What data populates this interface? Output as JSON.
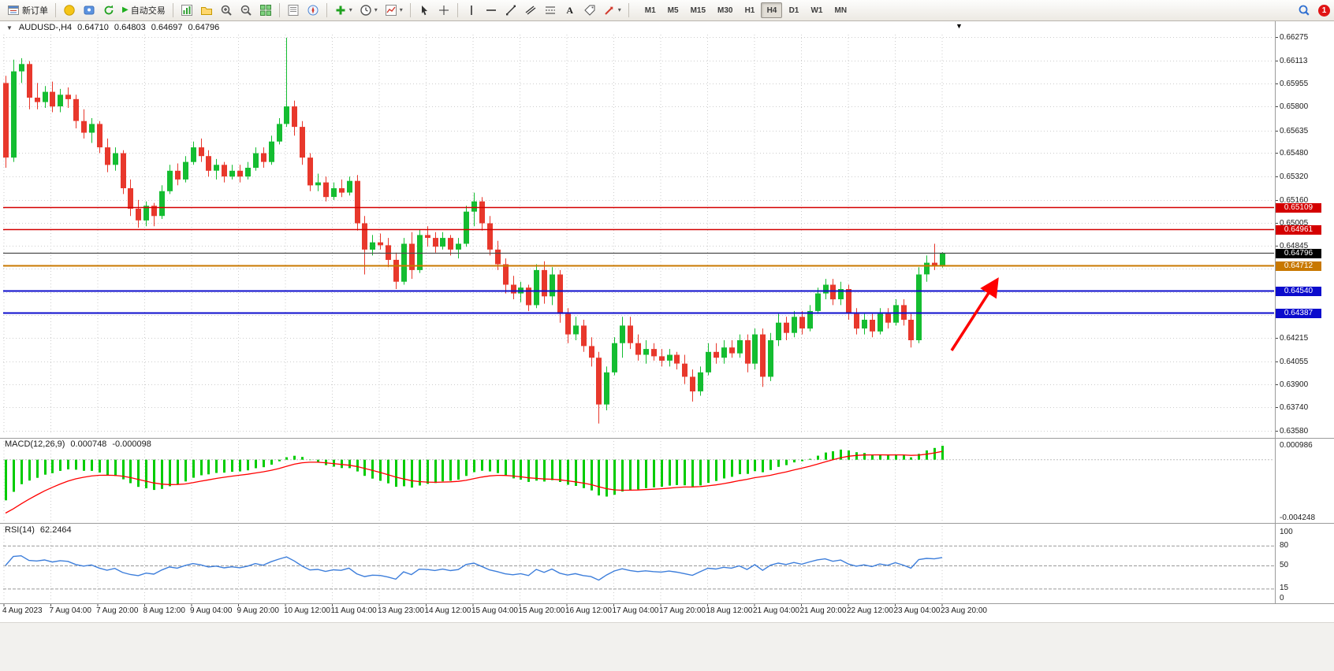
{
  "colors": {
    "up": "#14bd31",
    "down": "#e8382c",
    "grid": "#cdcdcd",
    "resistance": "#d40000",
    "mid_level": "#c87800",
    "support": "#0c0ccd",
    "bid": "#4a4a4a",
    "box_black": "#000000",
    "macd_hist": "#00cc00",
    "macd_signal": "#ff0000",
    "rsi": "#3d7edb",
    "rsi_level": "#999999",
    "arrow": "#fe0000"
  },
  "ui": {
    "toolbar": {
      "new_order_label": "新订单",
      "autotrading_label": "自动交易",
      "timeframes": [
        "M1",
        "M5",
        "M15",
        "M30",
        "H1",
        "H4",
        "D1",
        "W1",
        "MN"
      ],
      "active_timeframe": "H4",
      "notification_count": "1",
      "icons": {
        "dropdown": "▾",
        "play": "▶",
        "text_tool": "A"
      }
    },
    "chart_header": {
      "collapse_icon": "▼",
      "symbol_period": "AUDUSD-,H4",
      "open": "0.64710",
      "high": "0.64803",
      "low": "0.64697",
      "close": "0.64796",
      "shift_marker": "▼"
    },
    "macd": {
      "name": "MACD(12,26,9)",
      "value_main": "0.000748",
      "value_signal": "-0.000098",
      "scale_top": "0.000986",
      "scale_bottom": "-0.004248"
    },
    "rsi": {
      "name": "RSI(14)",
      "value": "62.2464",
      "scale": [
        {
          "label": "100",
          "value": 100
        },
        {
          "label": "80",
          "value": 80
        },
        {
          "label": "50",
          "value": 50
        },
        {
          "label": "15",
          "value": 15
        },
        {
          "label": "0",
          "value": 0
        }
      ]
    }
  },
  "chart_data": {
    "type": "candlestick",
    "symbol": "AUDUSD-",
    "timeframe": "H4",
    "current_ohlc": {
      "open": 0.6471,
      "high": 0.64803,
      "low": 0.64697,
      "close": 0.64796
    },
    "price_axis": {
      "min": 0.6358,
      "max": 0.66275,
      "tick_labels": [
        "0.66275",
        "0.66113",
        "0.65955",
        "0.65800",
        "0.65635",
        "0.65480",
        "0.65320",
        "0.65160",
        "0.65005",
        "0.64845",
        "0.64690",
        "0.64530",
        "0.64370",
        "0.64215",
        "0.64055",
        "0.63900",
        "0.63740",
        "0.63580"
      ]
    },
    "time_axis": [
      "4 Aug 2023",
      "7 Aug 04:00",
      "7 Aug 20:00",
      "8 Aug 12:00",
      "9 Aug 04:00",
      "9 Aug 20:00",
      "10 Aug 12:00",
      "11 Aug 04:00",
      "13 Aug 23:00",
      "14 Aug 12:00",
      "15 Aug 04:00",
      "15 Aug 20:00",
      "16 Aug 12:00",
      "17 Aug 04:00",
      "17 Aug 20:00",
      "18 Aug 12:00",
      "21 Aug 04:00",
      "21 Aug 20:00",
      "22 Aug 12:00",
      "23 Aug 04:00",
      "23 Aug 20:00"
    ],
    "horizontal_levels": [
      {
        "price": 0.65109,
        "label": "0.65109",
        "kind": "resistance"
      },
      {
        "price": 0.64961,
        "label": "0.64961",
        "kind": "resistance"
      },
      {
        "price": 0.64712,
        "label": "0.64712",
        "kind": "mid_level"
      },
      {
        "price": 0.6454,
        "label": "0.64540",
        "kind": "support"
      },
      {
        "price": 0.64387,
        "label": "0.64387",
        "kind": "support"
      }
    ],
    "bid": {
      "price": 0.64796,
      "label": "0.64796"
    },
    "indicators": [
      {
        "name": "MACD",
        "params": [
          12,
          26,
          9
        ],
        "current": [
          0.000748,
          -9.8e-05
        ],
        "scale": [
          0.000986,
          -0.004248
        ]
      },
      {
        "name": "RSI",
        "params": [
          14
        ],
        "current": 62.2464,
        "levels": [
          80,
          50,
          15
        ],
        "range": [
          0,
          100
        ]
      }
    ],
    "annotations": [
      {
        "type": "arrow",
        "color": "#fe0000",
        "direction": "up-right",
        "note": "bullish momentum arrow near latest candles"
      }
    ],
    "candles_ohlc": [
      [
        0.6596,
        0.6601,
        0.6538,
        0.6545
      ],
      [
        0.6545,
        0.6612,
        0.6542,
        0.6604
      ],
      [
        0.6604,
        0.6613,
        0.6596,
        0.6609
      ],
      [
        0.6609,
        0.6611,
        0.6578,
        0.6586
      ],
      [
        0.6586,
        0.6596,
        0.6578,
        0.6583
      ],
      [
        0.6583,
        0.6594,
        0.6579,
        0.659
      ],
      [
        0.659,
        0.6597,
        0.6576,
        0.658
      ],
      [
        0.658,
        0.6592,
        0.6576,
        0.6588
      ],
      [
        0.6588,
        0.6593,
        0.6579,
        0.6585
      ],
      [
        0.6585,
        0.6588,
        0.6565,
        0.657
      ],
      [
        0.657,
        0.6578,
        0.6558,
        0.6562
      ],
      [
        0.6562,
        0.6572,
        0.6555,
        0.6568
      ],
      [
        0.6568,
        0.657,
        0.6548,
        0.6552
      ],
      [
        0.6552,
        0.6558,
        0.6535,
        0.654
      ],
      [
        0.654,
        0.6552,
        0.6536,
        0.6548
      ],
      [
        0.6548,
        0.655,
        0.652,
        0.6524
      ],
      [
        0.6524,
        0.653,
        0.6505,
        0.651
      ],
      [
        0.651,
        0.6516,
        0.6497,
        0.6502
      ],
      [
        0.6502,
        0.6515,
        0.6498,
        0.6512
      ],
      [
        0.6512,
        0.6514,
        0.6498,
        0.6505
      ],
      [
        0.6505,
        0.6526,
        0.6503,
        0.6522
      ],
      [
        0.6522,
        0.654,
        0.652,
        0.6536
      ],
      [
        0.6536,
        0.6541,
        0.6526,
        0.653
      ],
      [
        0.653,
        0.6546,
        0.6528,
        0.6542
      ],
      [
        0.6542,
        0.6556,
        0.654,
        0.6552
      ],
      [
        0.6552,
        0.6558,
        0.6542,
        0.6546
      ],
      [
        0.6546,
        0.655,
        0.6532,
        0.6536
      ],
      [
        0.6536,
        0.6544,
        0.653,
        0.654
      ],
      [
        0.654,
        0.6542,
        0.6528,
        0.6532
      ],
      [
        0.6532,
        0.654,
        0.653,
        0.6536
      ],
      [
        0.6536,
        0.654,
        0.6528,
        0.6532
      ],
      [
        0.6532,
        0.6542,
        0.653,
        0.6538
      ],
      [
        0.6538,
        0.6552,
        0.6536,
        0.6548
      ],
      [
        0.6548,
        0.6552,
        0.6538,
        0.6542
      ],
      [
        0.6542,
        0.656,
        0.654,
        0.6556
      ],
      [
        0.6556,
        0.6572,
        0.6554,
        0.6568
      ],
      [
        0.6568,
        0.6627,
        0.6566,
        0.658
      ],
      [
        0.658,
        0.6584,
        0.656,
        0.6566
      ],
      [
        0.6566,
        0.657,
        0.654,
        0.6545
      ],
      [
        0.6545,
        0.6548,
        0.6522,
        0.6526
      ],
      [
        0.6526,
        0.6534,
        0.6522,
        0.6528
      ],
      [
        0.6528,
        0.6532,
        0.6515,
        0.6518
      ],
      [
        0.6518,
        0.6528,
        0.6516,
        0.6524
      ],
      [
        0.6524,
        0.653,
        0.6518,
        0.6521
      ],
      [
        0.6521,
        0.6532,
        0.6519,
        0.6529
      ],
      [
        0.6529,
        0.6533,
        0.6495,
        0.65
      ],
      [
        0.65,
        0.6505,
        0.6465,
        0.6482
      ],
      [
        0.6482,
        0.6492,
        0.6478,
        0.6487
      ],
      [
        0.6487,
        0.6493,
        0.6482,
        0.6485
      ],
      [
        0.6485,
        0.649,
        0.647,
        0.6475
      ],
      [
        0.6475,
        0.648,
        0.6455,
        0.646
      ],
      [
        0.646,
        0.649,
        0.6458,
        0.6486
      ],
      [
        0.6486,
        0.6494,
        0.6462,
        0.6468
      ],
      [
        0.6468,
        0.6496,
        0.6466,
        0.6492
      ],
      [
        0.6492,
        0.6498,
        0.6484,
        0.649
      ],
      [
        0.649,
        0.6494,
        0.648,
        0.6484
      ],
      [
        0.6484,
        0.6494,
        0.6482,
        0.649
      ],
      [
        0.649,
        0.6492,
        0.6478,
        0.6482
      ],
      [
        0.6482,
        0.649,
        0.6476,
        0.6486
      ],
      [
        0.6486,
        0.6512,
        0.6484,
        0.6508
      ],
      [
        0.6508,
        0.6521,
        0.6498,
        0.6515
      ],
      [
        0.6515,
        0.6518,
        0.6495,
        0.65
      ],
      [
        0.65,
        0.6505,
        0.6478,
        0.6482
      ],
      [
        0.6482,
        0.6488,
        0.6468,
        0.6472
      ],
      [
        0.6472,
        0.6476,
        0.6452,
        0.6458
      ],
      [
        0.6458,
        0.6464,
        0.6448,
        0.6452
      ],
      [
        0.6452,
        0.646,
        0.6446,
        0.6456
      ],
      [
        0.6456,
        0.6458,
        0.644,
        0.6444
      ],
      [
        0.6444,
        0.6472,
        0.6442,
        0.6468
      ],
      [
        0.6468,
        0.6474,
        0.6445,
        0.645
      ],
      [
        0.645,
        0.647,
        0.6444,
        0.6465
      ],
      [
        0.6465,
        0.6468,
        0.6432,
        0.6438
      ],
      [
        0.6438,
        0.6442,
        0.6418,
        0.6424
      ],
      [
        0.6424,
        0.6436,
        0.642,
        0.643
      ],
      [
        0.643,
        0.6434,
        0.6412,
        0.6416
      ],
      [
        0.6416,
        0.6422,
        0.6402,
        0.6408
      ],
      [
        0.6408,
        0.6412,
        0.6363,
        0.6376
      ],
      [
        0.6376,
        0.6402,
        0.6372,
        0.6398
      ],
      [
        0.6398,
        0.6422,
        0.6396,
        0.6418
      ],
      [
        0.6418,
        0.6436,
        0.6408,
        0.643
      ],
      [
        0.643,
        0.6436,
        0.6414,
        0.6418
      ],
      [
        0.6418,
        0.6424,
        0.6406,
        0.641
      ],
      [
        0.641,
        0.642,
        0.6404,
        0.6414
      ],
      [
        0.6414,
        0.6418,
        0.6406,
        0.6409
      ],
      [
        0.6409,
        0.6414,
        0.6402,
        0.6406
      ],
      [
        0.6406,
        0.6414,
        0.6402,
        0.641
      ],
      [
        0.641,
        0.6412,
        0.64,
        0.6404
      ],
      [
        0.6404,
        0.641,
        0.639,
        0.6395
      ],
      [
        0.6395,
        0.64,
        0.6378,
        0.6385
      ],
      [
        0.6385,
        0.6402,
        0.6382,
        0.6398
      ],
      [
        0.6398,
        0.6418,
        0.6396,
        0.6412
      ],
      [
        0.6412,
        0.6418,
        0.6404,
        0.6408
      ],
      [
        0.6408,
        0.642,
        0.6404,
        0.6415
      ],
      [
        0.6415,
        0.642,
        0.6408,
        0.6411
      ],
      [
        0.6411,
        0.6424,
        0.6408,
        0.642
      ],
      [
        0.642,
        0.6424,
        0.6398,
        0.6404
      ],
      [
        0.6404,
        0.6428,
        0.64,
        0.6424
      ],
      [
        0.6424,
        0.6428,
        0.6388,
        0.6395
      ],
      [
        0.6395,
        0.6425,
        0.6392,
        0.642
      ],
      [
        0.642,
        0.6438,
        0.6416,
        0.6432
      ],
      [
        0.6432,
        0.6436,
        0.642,
        0.6425
      ],
      [
        0.6425,
        0.644,
        0.6422,
        0.6436
      ],
      [
        0.6436,
        0.644,
        0.6424,
        0.6428
      ],
      [
        0.6428,
        0.6444,
        0.6426,
        0.644
      ],
      [
        0.644,
        0.6456,
        0.6438,
        0.6452
      ],
      [
        0.6452,
        0.6462,
        0.6448,
        0.6458
      ],
      [
        0.6458,
        0.6462,
        0.6444,
        0.6448
      ],
      [
        0.6448,
        0.646,
        0.6444,
        0.6455
      ],
      [
        0.6455,
        0.6458,
        0.6434,
        0.6438
      ],
      [
        0.6438,
        0.6442,
        0.6424,
        0.6428
      ],
      [
        0.6428,
        0.6438,
        0.6424,
        0.6434
      ],
      [
        0.6434,
        0.6438,
        0.6422,
        0.6426
      ],
      [
        0.6426,
        0.6442,
        0.6424,
        0.6438
      ],
      [
        0.6438,
        0.6442,
        0.6428,
        0.6432
      ],
      [
        0.6432,
        0.6448,
        0.643,
        0.6444
      ],
      [
        0.6444,
        0.6448,
        0.643,
        0.6434
      ],
      [
        0.6434,
        0.6438,
        0.6415,
        0.642
      ],
      [
        0.642,
        0.647,
        0.6418,
        0.6465
      ],
      [
        0.6465,
        0.6478,
        0.646,
        0.6473
      ],
      [
        0.6473,
        0.6486,
        0.6468,
        0.6471
      ],
      [
        0.6471,
        0.64803,
        0.64697,
        0.64796
      ]
    ]
  }
}
